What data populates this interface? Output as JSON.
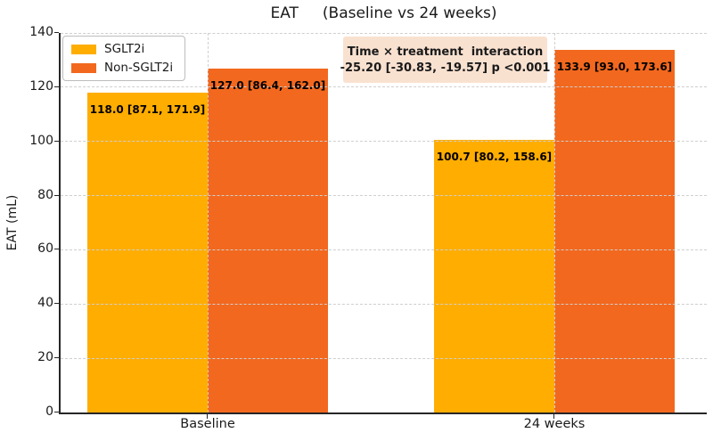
{
  "chart_data": {
    "type": "bar",
    "title": "EAT     (Baseline vs 24 weeks)",
    "ylabel": "EAT (mL)",
    "categories": [
      "Baseline",
      "24 weeks"
    ],
    "series": [
      {
        "name": "SGLT2i",
        "color": "#FFAD00",
        "values": [
          118.0,
          100.7
        ],
        "bar_labels": [
          "118.0 [87.1, 171.9]",
          "100.7 [80.2, 158.6]"
        ]
      },
      {
        "name": "Non-SGLT2i",
        "color": "#F2681E",
        "values": [
          127.0,
          133.9
        ],
        "bar_labels": [
          "127.0 [86.4, 162.0]",
          "133.9 [93.0, 173.6]"
        ]
      }
    ],
    "ylim": [
      0,
      140
    ],
    "yticks": [
      0,
      20,
      40,
      60,
      80,
      100,
      120,
      140
    ],
    "grid": "dashed",
    "legend_position": "upper-left",
    "annotation": {
      "line1": "Time × treatment  interaction",
      "line2": "-25.20 [-30.83, -19.57] p <0.001",
      "bg_color": "#F9E1D0"
    }
  },
  "colors": {
    "axis": "#262626",
    "grid": "#cfcfcf",
    "text": "#1a1a1a"
  }
}
